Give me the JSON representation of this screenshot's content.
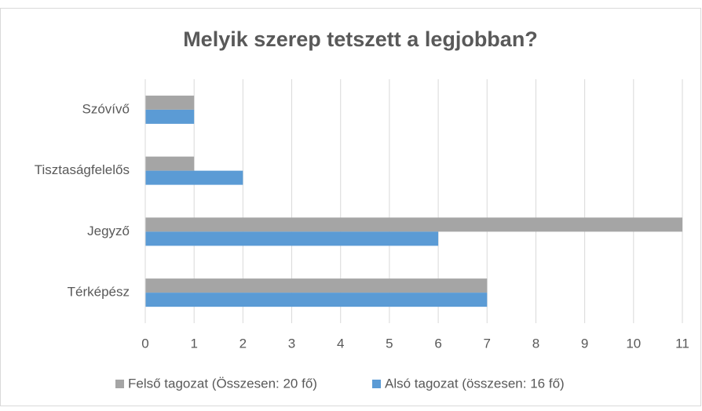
{
  "chart_data": {
    "type": "hbar",
    "title": "Melyik szerep tetszett a legjobban?",
    "categories": [
      "Szóvívő",
      "Tisztaságfelelős",
      "Jegyző",
      "Térképész"
    ],
    "series": [
      {
        "name": "Felső tagozat (Összesen: 20 fő)",
        "color": "#a5a5a5",
        "values": [
          1,
          1,
          11,
          7
        ]
      },
      {
        "name": "Alsó tagozat (összesen: 16 fő)",
        "color": "#5b9bd5",
        "values": [
          1,
          2,
          6,
          7
        ]
      }
    ],
    "xlim": [
      0,
      11
    ],
    "xticks": [
      0,
      1,
      2,
      3,
      4,
      5,
      6,
      7,
      8,
      9,
      10,
      11
    ],
    "grid": true,
    "legend": "bottom"
  }
}
